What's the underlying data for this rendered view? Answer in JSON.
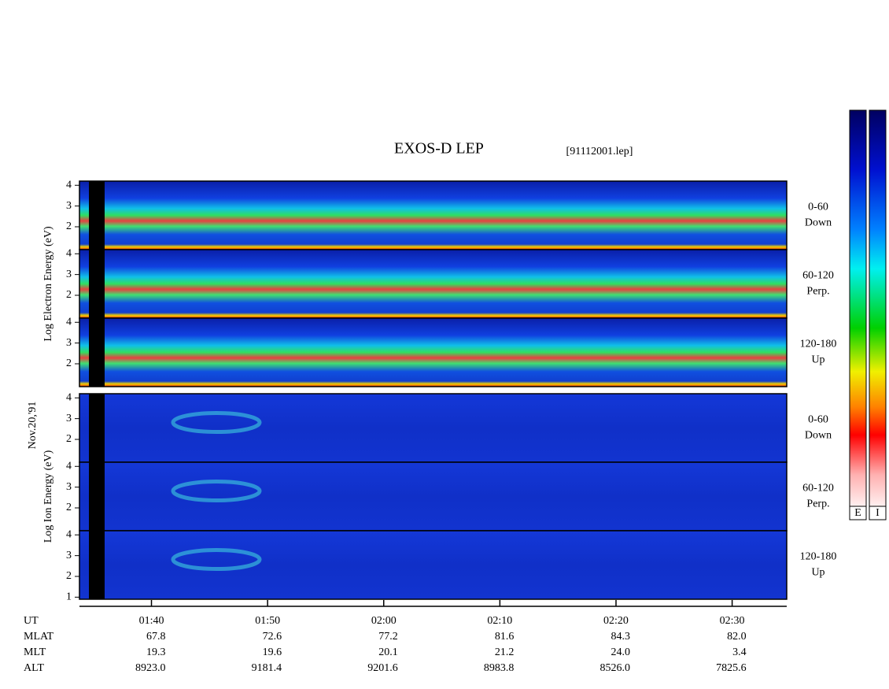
{
  "chart_data": {
    "type": "spectrogram",
    "title": "EXOS-D LEP",
    "file_label": "[91112001.lep]",
    "date_label": "Nov.20,'91",
    "xlim": [
      93.8,
      154.7
    ],
    "xticks": [
      {
        "value": 100,
        "label": "01:40"
      },
      {
        "value": 110,
        "label": "01:50"
      },
      {
        "value": 120,
        "label": "02:00"
      },
      {
        "value": 130,
        "label": "02:10"
      },
      {
        "value": 140,
        "label": "02:20"
      },
      {
        "value": 150,
        "label": "02:30"
      }
    ],
    "x_axis_name": "UT",
    "x_rows": [
      {
        "name": "MLAT",
        "values": [
          "67.8",
          "72.6",
          "77.2",
          "81.6",
          "84.3",
          "82.0"
        ]
      },
      {
        "name": "MLT",
        "values": [
          "19.3",
          "19.6",
          "20.1",
          "21.2",
          "24.0",
          "3.4"
        ]
      },
      {
        "name": "ALT",
        "values": [
          "8923.0",
          "9181.4",
          "9201.6",
          "8983.8",
          "8526.0",
          "7825.6"
        ]
      }
    ],
    "groups": [
      {
        "ylabel": "Log Electron Energy (eV)",
        "ylim": [
          0.9,
          4.2
        ],
        "panels": [
          {
            "range": "0-60",
            "direction": "Down",
            "yticks": [
              2,
              3,
              4
            ]
          },
          {
            "range": "60-120",
            "direction": "Perp.",
            "yticks": [
              2,
              3,
              4
            ]
          },
          {
            "range": "120-180",
            "direction": "Up",
            "yticks": [
              2,
              3,
              4
            ]
          }
        ]
      },
      {
        "ylabel": "Log Ion Energy (eV)",
        "ylim": [
          0.9,
          4.2
        ],
        "panels": [
          {
            "range": "0-60",
            "direction": "Down",
            "yticks": [
              2,
              3,
              4
            ]
          },
          {
            "range": "60-120",
            "direction": "Perp.",
            "yticks": [
              2,
              3,
              4
            ]
          },
          {
            "range": "120-180",
            "direction": "Up",
            "yticks": [
              1,
              2,
              3,
              4
            ]
          }
        ]
      }
    ],
    "colorbars": [
      "E",
      "I"
    ]
  }
}
